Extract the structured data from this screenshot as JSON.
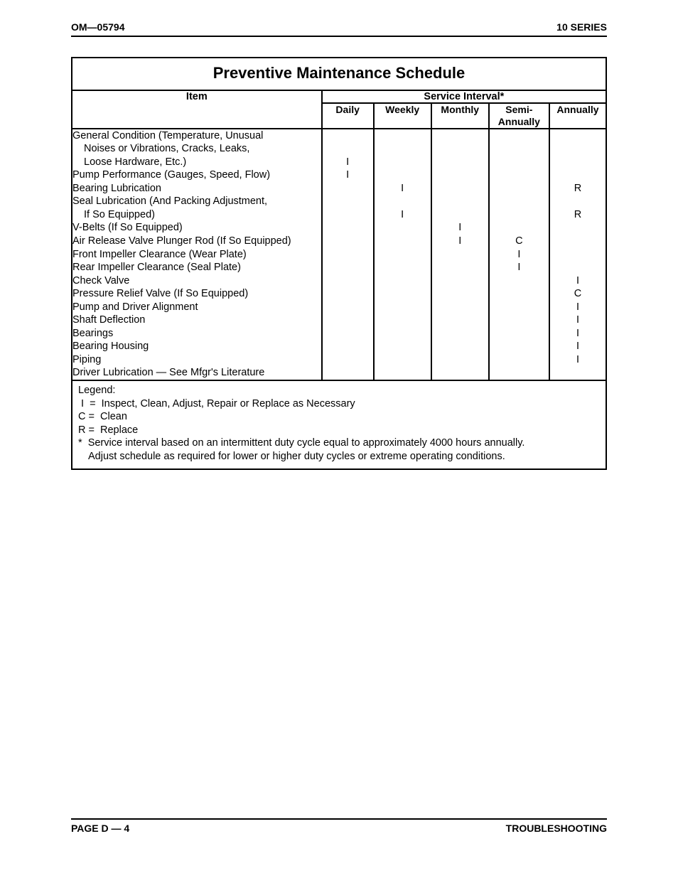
{
  "header": {
    "left": "OM—05794",
    "right": "10 SERIES"
  },
  "footer": {
    "left": "PAGE D — 4",
    "right": "TROUBLESHOOTING"
  },
  "table": {
    "title": "Preventive Maintenance Schedule",
    "item_header": "Item",
    "service_header": "Service Interval*",
    "columns": [
      "Daily",
      "Weekly",
      "Monthly",
      "Semi-\nAnnually",
      "Annually"
    ],
    "rows": [
      {
        "lines": [
          "General Condition (Temperature, Unusual",
          "  Noises or Vibrations, Cracks, Leaks,",
          "  Loose Hardware, Etc.)"
        ],
        "marks": [
          "I",
          "",
          "",
          "",
          ""
        ]
      },
      {
        "lines": [
          "Pump Performance (Gauges, Speed, Flow)"
        ],
        "marks": [
          "I",
          "",
          "",
          "",
          ""
        ]
      },
      {
        "lines": [
          "Bearing Lubrication"
        ],
        "marks": [
          "",
          "I",
          "",
          "",
          "R"
        ]
      },
      {
        "lines": [
          "Seal Lubrication (And Packing Adjustment,",
          "  If So Equipped)"
        ],
        "marks": [
          "",
          "I",
          "",
          "",
          "R"
        ]
      },
      {
        "lines": [
          "V-Belts (If So Equipped)"
        ],
        "marks": [
          "",
          "",
          "I",
          "",
          ""
        ]
      },
      {
        "lines": [
          "Air Release Valve Plunger Rod (If So Equipped)"
        ],
        "marks": [
          "",
          "",
          "I",
          "C",
          ""
        ]
      },
      {
        "lines": [
          "Front Impeller Clearance (Wear Plate)"
        ],
        "marks": [
          "",
          "",
          "",
          "I",
          ""
        ]
      },
      {
        "lines": [
          "Rear Impeller Clearance (Seal Plate)"
        ],
        "marks": [
          "",
          "",
          "",
          "I",
          ""
        ]
      },
      {
        "lines": [
          "Check Valve"
        ],
        "marks": [
          "",
          "",
          "",
          "",
          "I"
        ]
      },
      {
        "lines": [
          "Pressure Relief Valve (If So Equipped)"
        ],
        "marks": [
          "",
          "",
          "",
          "",
          "C"
        ]
      },
      {
        "lines": [
          "Pump and Driver Alignment"
        ],
        "marks": [
          "",
          "",
          "",
          "",
          "I"
        ]
      },
      {
        "lines": [
          "Shaft Deflection"
        ],
        "marks": [
          "",
          "",
          "",
          "",
          "I"
        ]
      },
      {
        "lines": [
          "Bearings"
        ],
        "marks": [
          "",
          "",
          "",
          "",
          "I"
        ]
      },
      {
        "lines": [
          "Bearing Housing"
        ],
        "marks": [
          "",
          "",
          "",
          "",
          "I"
        ]
      },
      {
        "lines": [
          "Piping"
        ],
        "marks": [
          "",
          "",
          "",
          "",
          "I"
        ]
      },
      {
        "lines": [
          "Driver Lubrication — See Mfgr's Literature"
        ],
        "marks": [
          "",
          "",
          "",
          "",
          ""
        ]
      }
    ]
  },
  "legend": {
    "title": "Legend:",
    "i": " I  =  Inspect, Clean, Adjust, Repair or Replace as Necessary",
    "c": "C =  Clean",
    "r": "R =  Replace",
    "footnote1": "*  Service interval based on an intermittent duty cycle equal to approximately 4000 hours annually.",
    "footnote2": "Adjust schedule as required for lower or higher duty cycles or extreme operating conditions."
  }
}
